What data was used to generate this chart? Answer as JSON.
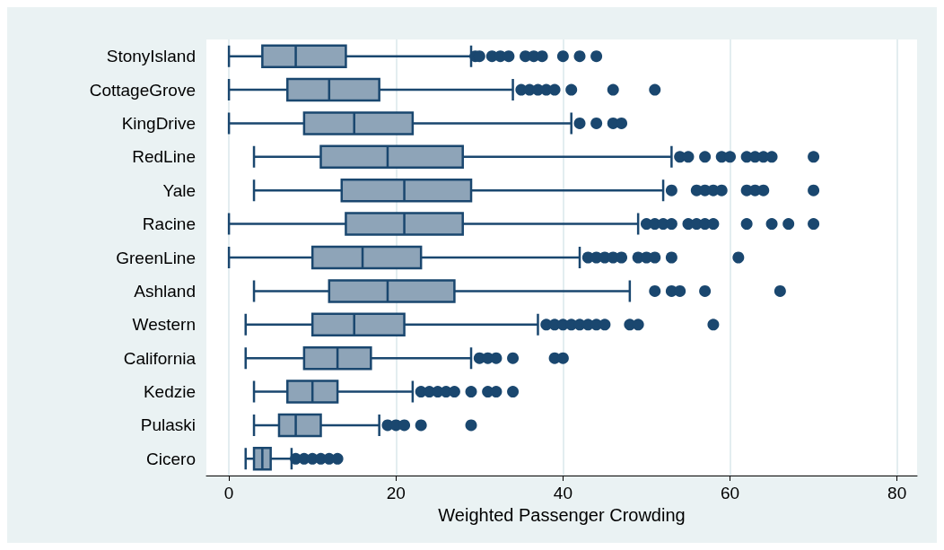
{
  "chart_data": {
    "type": "box",
    "orientation": "horizontal",
    "xlabel": "Weighted Passenger Crowding",
    "categories": [
      "StonyIsland",
      "CottageGrove",
      "KingDrive",
      "RedLine",
      "Yale",
      "Racine",
      "GreenLine",
      "Ashland",
      "Western",
      "California",
      "Kedzie",
      "Pulaski",
      "Cicero"
    ],
    "xlim": [
      -2.7,
      82.4
    ],
    "xticks": [
      0,
      20,
      40,
      60,
      80
    ],
    "grid": "x",
    "color": "#8ea4b8",
    "marker": "circle",
    "boxes": [
      {
        "low": 0,
        "q1": 4,
        "median": 8,
        "q3": 14,
        "high": 29,
        "outliers": [
          29.5,
          30,
          31.5,
          32.5,
          33.5,
          35.5,
          36.5,
          37.5,
          40,
          42,
          44
        ]
      },
      {
        "low": 0,
        "q1": 7,
        "median": 12,
        "q3": 18,
        "high": 34,
        "outliers": [
          35,
          36,
          37,
          38,
          39,
          41,
          46,
          51
        ]
      },
      {
        "low": 0,
        "q1": 9,
        "median": 15,
        "q3": 22,
        "high": 41,
        "outliers": [
          42,
          44,
          46,
          47
        ]
      },
      {
        "low": 3,
        "q1": 11,
        "median": 19,
        "q3": 28,
        "high": 53,
        "outliers": [
          54,
          55,
          57,
          59,
          60,
          62,
          63,
          64,
          65,
          70
        ]
      },
      {
        "low": 3,
        "q1": 13.5,
        "median": 21,
        "q3": 29,
        "high": 52,
        "outliers": [
          53,
          56,
          57,
          58,
          59,
          62,
          63,
          64,
          70
        ]
      },
      {
        "low": 0,
        "q1": 14,
        "median": 21,
        "q3": 28,
        "high": 49,
        "outliers": [
          50,
          51,
          52,
          53,
          55,
          56,
          57,
          58,
          62,
          65,
          67,
          70
        ]
      },
      {
        "low": 0,
        "q1": 10,
        "median": 16,
        "q3": 23,
        "high": 42,
        "outliers": [
          43,
          44,
          45,
          46,
          47,
          49,
          50,
          51,
          53,
          61
        ]
      },
      {
        "low": 3,
        "q1": 12,
        "median": 19,
        "q3": 27,
        "high": 48,
        "outliers": [
          51,
          53,
          54,
          57,
          66
        ]
      },
      {
        "low": 2,
        "q1": 10,
        "median": 15,
        "q3": 21,
        "high": 37,
        "outliers": [
          38,
          39,
          40,
          41,
          42,
          43,
          44,
          45,
          48,
          49,
          58
        ]
      },
      {
        "low": 2,
        "q1": 9,
        "median": 13,
        "q3": 17,
        "high": 29,
        "outliers": [
          30,
          31,
          32,
          34,
          39,
          40
        ]
      },
      {
        "low": 3,
        "q1": 7,
        "median": 10,
        "q3": 13,
        "high": 22,
        "outliers": [
          23,
          24,
          25,
          26,
          27,
          29,
          31,
          32,
          34
        ]
      },
      {
        "low": 3,
        "q1": 6,
        "median": 8,
        "q3": 11,
        "high": 18,
        "outliers": [
          19,
          20,
          21,
          23,
          29
        ]
      },
      {
        "low": 2,
        "q1": 3,
        "median": 4,
        "q3": 5,
        "high": 7.5,
        "outliers": [
          8,
          9,
          10,
          11,
          12,
          13
        ]
      }
    ]
  }
}
